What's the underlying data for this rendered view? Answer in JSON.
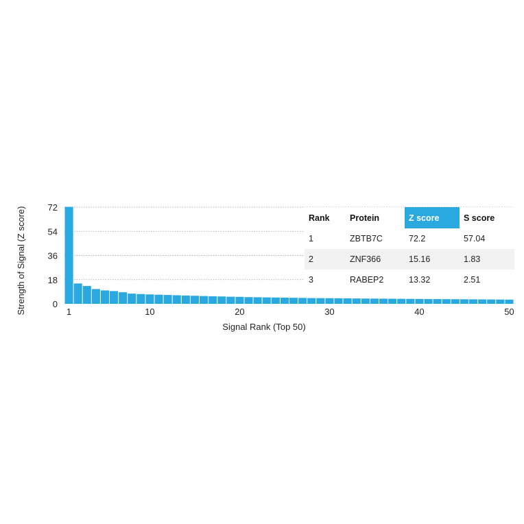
{
  "chart_data": {
    "type": "bar",
    "categories": [
      1,
      2,
      3,
      4,
      5,
      6,
      7,
      8,
      9,
      10,
      11,
      12,
      13,
      14,
      15,
      16,
      17,
      18,
      19,
      20,
      21,
      22,
      23,
      24,
      25,
      26,
      27,
      28,
      29,
      30,
      31,
      32,
      33,
      34,
      35,
      36,
      37,
      38,
      39,
      40,
      41,
      42,
      43,
      44,
      45,
      46,
      47,
      48,
      49,
      50
    ],
    "values": [
      72.2,
      15.16,
      13.32,
      11.0,
      10.0,
      9.5,
      8.6,
      7.6,
      7.3,
      7.0,
      6.8,
      6.6,
      6.4,
      6.2,
      6.0,
      5.8,
      5.6,
      5.5,
      5.3,
      5.2,
      5.0,
      4.9,
      4.8,
      4.7,
      4.6,
      4.5,
      4.4,
      4.3,
      4.25,
      4.2,
      4.15,
      4.1,
      4.0,
      3.95,
      3.9,
      3.85,
      3.8,
      3.75,
      3.7,
      3.65,
      3.6,
      3.55,
      3.5,
      3.45,
      3.4,
      3.35,
      3.3,
      3.25,
      3.2,
      3.15
    ],
    "xlabel": "Signal Rank (Top 50)",
    "ylabel": "Strength of Signal (Z score)",
    "ylim": [
      0,
      72
    ],
    "yticks": [
      0,
      18,
      36,
      54,
      72
    ],
    "xticks": [
      1,
      10,
      20,
      30,
      40,
      50
    ],
    "grid": "horizontal dotted",
    "bar_color": "#29a9e0"
  },
  "table": {
    "headers": [
      "Rank",
      "Protein",
      "Z score",
      "S score"
    ],
    "highlight_header": "Z score",
    "highlight_color": "#29a9e0",
    "rows": [
      [
        "1",
        "ZBTB7C",
        "72.2",
        "57.04"
      ],
      [
        "2",
        "ZNF366",
        "15.16",
        "1.83"
      ],
      [
        "3",
        "RABEP2",
        "13.32",
        "2.51"
      ]
    ]
  }
}
